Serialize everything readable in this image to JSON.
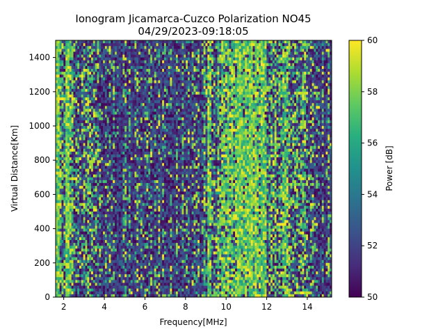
{
  "chart_data": {
    "type": "heatmap",
    "title": "Ionogram Jicamarca-Cuzco Polarization NO45",
    "subtitle": "04/29/2023-09:18:05",
    "xlabel": "Frequency[MHz]",
    "ylabel": "Virtual Distance[Km]",
    "colorbar_label": "Power [dB]",
    "colormap": "viridis",
    "xlim": [
      1.6,
      15.2
    ],
    "ylim": [
      0,
      1500
    ],
    "clim": [
      50,
      60
    ],
    "xticks": [
      "2",
      "4",
      "6",
      "8",
      "10",
      "12",
      "14"
    ],
    "xtick_values": [
      2,
      4,
      6,
      8,
      10,
      12,
      14
    ],
    "yticks": [
      "0",
      "200",
      "400",
      "600",
      "800",
      "1000",
      "1200",
      "1400"
    ],
    "ytick_values": [
      0,
      200,
      400,
      600,
      800,
      1000,
      1200,
      1400
    ],
    "cticks": [
      "50",
      "52",
      "54",
      "56",
      "58",
      "60"
    ],
    "ctick_values": [
      50,
      52,
      54,
      56,
      58,
      60
    ],
    "grid": false,
    "bands": [
      {
        "from": 1.6,
        "to": 1.8,
        "level": 0.95
      },
      {
        "from": 1.8,
        "to": 2.1,
        "level": 0.55
      },
      {
        "from": 2.1,
        "to": 2.4,
        "level": 0.85
      },
      {
        "from": 2.4,
        "to": 2.7,
        "level": 0.45
      },
      {
        "from": 2.7,
        "to": 3.0,
        "level": 0.3
      },
      {
        "from": 3.0,
        "to": 3.5,
        "level": 0.5
      },
      {
        "from": 3.5,
        "to": 4.1,
        "level": 0.3
      },
      {
        "from": 4.1,
        "to": 6.5,
        "level": 0.15
      },
      {
        "from": 6.5,
        "to": 8.8,
        "level": 0.2
      },
      {
        "from": 8.8,
        "to": 9.1,
        "level": 0.35
      },
      {
        "from": 9.1,
        "to": 9.3,
        "level": 1.0
      },
      {
        "from": 9.3,
        "to": 9.8,
        "level": 0.55
      },
      {
        "from": 9.8,
        "to": 10.3,
        "level": 0.8
      },
      {
        "from": 10.3,
        "to": 11.5,
        "level": 0.97
      },
      {
        "from": 11.5,
        "to": 11.7,
        "level": 0.75
      },
      {
        "from": 11.7,
        "to": 12.0,
        "level": 0.95
      },
      {
        "from": 12.0,
        "to": 12.8,
        "level": 0.55
      },
      {
        "from": 12.8,
        "to": 13.1,
        "level": 0.75
      },
      {
        "from": 13.1,
        "to": 14.0,
        "level": 0.4
      },
      {
        "from": 14.0,
        "to": 15.2,
        "level": 0.22
      }
    ]
  }
}
